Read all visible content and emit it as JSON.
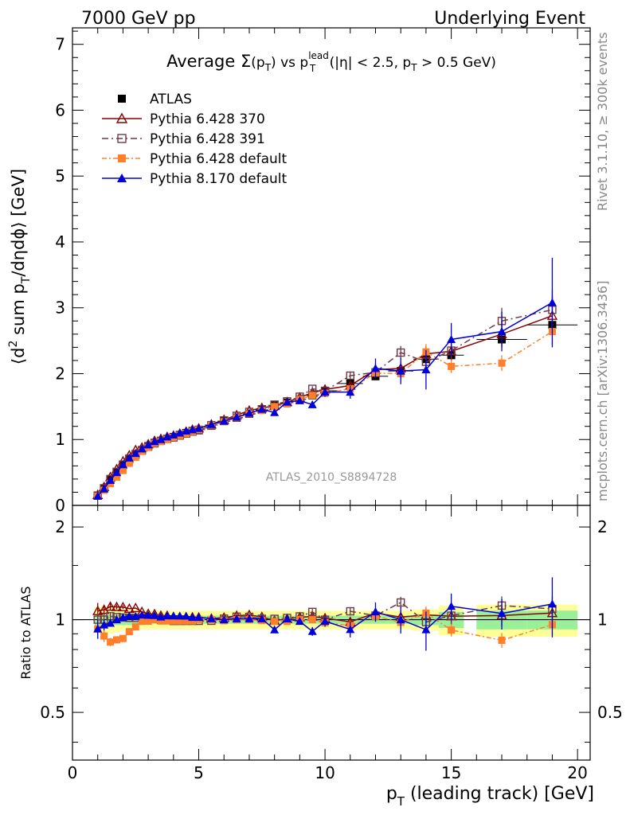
{
  "header": {
    "left": "7000 GeV pp",
    "right": "Underlying Event"
  },
  "side_labels": {
    "rivet": "Rivet 3.1.10, ≥ 300k events",
    "mcplots": "mcplots.cern.ch [arXiv:1306.3436]"
  },
  "chart_data": {
    "type": "scatter",
    "title": {
      "prefix": "Average ",
      "sigma": "Σ",
      "sigma_arg": "(p",
      "sigma_arg_sub": "T",
      "sigma_arg_close": ")",
      "vs": " vs p",
      "vs_sup": "lead",
      "vs_sub": "T",
      "cut_a": " (|η| < 2.5, p",
      "cut_sub": "T",
      "cut_b": " > 0.5 GeV)"
    },
    "ylabel": {
      "a": "⟨d",
      "sup": "2",
      "b": " sum p",
      "sub": "T",
      "c": "/dηdϕ⟩ [GeV]"
    },
    "ratio_ylabel": "Ratio to ATLAS",
    "xlabel": {
      "a": "p",
      "sub": "T",
      "b": " (leading track) [GeV]"
    },
    "watermark": "ATLAS_2010_S8894728",
    "xlim": [
      0,
      20.5
    ],
    "ylim": [
      0,
      7.25
    ],
    "ratio_ylim": [
      0.35,
      2.35
    ],
    "x_ticks": [
      "0",
      "5",
      "10",
      "15",
      "20"
    ],
    "y_ticks": [
      "0",
      "1",
      "2",
      "3",
      "4",
      "5",
      "6",
      "7"
    ],
    "ratio_ticks": [
      "0.5",
      "1",
      "2"
    ],
    "legend_position": "top-left",
    "x": [
      1.0,
      1.25,
      1.5,
      1.75,
      2.0,
      2.25,
      2.5,
      2.75,
      3.0,
      3.25,
      3.5,
      3.75,
      4.0,
      4.25,
      4.5,
      4.75,
      5.0,
      5.5,
      6.0,
      6.5,
      7.0,
      7.5,
      8.0,
      8.5,
      9.0,
      9.5,
      10.0,
      11.0,
      12.0,
      13.0,
      14.0,
      15.0,
      17.0,
      19.0
    ],
    "x_err": [
      0.125,
      0.125,
      0.125,
      0.125,
      0.125,
      0.125,
      0.125,
      0.125,
      0.125,
      0.125,
      0.125,
      0.125,
      0.125,
      0.125,
      0.125,
      0.125,
      0.25,
      0.25,
      0.25,
      0.25,
      0.25,
      0.25,
      0.25,
      0.25,
      0.25,
      0.25,
      0.5,
      0.5,
      0.5,
      0.5,
      0.5,
      0.5,
      1.0,
      1.0
    ],
    "data": {
      "name": "ATLAS",
      "values": [
        0.15,
        0.26,
        0.39,
        0.5,
        0.61,
        0.7,
        0.77,
        0.83,
        0.89,
        0.94,
        0.98,
        1.01,
        1.04,
        1.07,
        1.1,
        1.13,
        1.15,
        1.22,
        1.28,
        1.33,
        1.39,
        1.45,
        1.52,
        1.56,
        1.61,
        1.67,
        1.74,
        1.85,
        1.96,
        2.04,
        2.22,
        2.28,
        2.52,
        2.74
      ],
      "band_inner": [
        0.04,
        0.04,
        0.04,
        0.04,
        0.04,
        0.04,
        0.04,
        0.04,
        0.03,
        0.03,
        0.03,
        0.03,
        0.03,
        0.03,
        0.03,
        0.03,
        0.03,
        0.03,
        0.03,
        0.03,
        0.03,
        0.03,
        0.03,
        0.03,
        0.03,
        0.03,
        0.03,
        0.03,
        0.03,
        0.03,
        0.04,
        0.06,
        0.07,
        0.07
      ],
      "band_outer": [
        0.1,
        0.1,
        0.1,
        0.09,
        0.08,
        0.08,
        0.08,
        0.07,
        0.07,
        0.07,
        0.07,
        0.07,
        0.07,
        0.07,
        0.07,
        0.07,
        0.07,
        0.07,
        0.07,
        0.07,
        0.07,
        0.07,
        0.07,
        0.07,
        0.07,
        0.07,
        0.07,
        0.07,
        0.07,
        0.07,
        0.08,
        0.11,
        0.12,
        0.12
      ]
    },
    "series": [
      {
        "name": "Pythia 6.428 370",
        "color": "#8b0000",
        "marker": "triangle-open",
        "dash": "",
        "values": [
          0.16,
          0.28,
          0.43,
          0.55,
          0.67,
          0.76,
          0.84,
          0.88,
          0.93,
          0.98,
          1.01,
          1.04,
          1.06,
          1.09,
          1.12,
          1.15,
          1.17,
          1.23,
          1.3,
          1.37,
          1.44,
          1.48,
          1.51,
          1.57,
          1.64,
          1.71,
          1.76,
          1.82,
          2.06,
          2.08,
          2.3,
          2.34,
          2.6,
          2.88
        ],
        "err": [
          0.01,
          0.01,
          0.01,
          0.01,
          0.01,
          0.01,
          0.01,
          0.01,
          0.01,
          0.01,
          0.01,
          0.01,
          0.01,
          0.01,
          0.01,
          0.01,
          0.01,
          0.01,
          0.02,
          0.02,
          0.02,
          0.02,
          0.03,
          0.03,
          0.03,
          0.04,
          0.05,
          0.06,
          0.08,
          0.1,
          0.12,
          0.15,
          0.2,
          0.3
        ]
      },
      {
        "name": "Pythia 6.428 391",
        "color": "#6e3a4a",
        "marker": "square-open",
        "dash": "8,4,2,4",
        "values": [
          0.15,
          0.26,
          0.4,
          0.51,
          0.62,
          0.71,
          0.78,
          0.84,
          0.9,
          0.95,
          0.98,
          1.01,
          1.03,
          1.06,
          1.09,
          1.12,
          1.14,
          1.21,
          1.29,
          1.36,
          1.42,
          1.46,
          1.53,
          1.58,
          1.65,
          1.77,
          1.74,
          1.97,
          2.02,
          2.32,
          2.18,
          2.35,
          2.8,
          2.97
        ],
        "err": [
          0.01,
          0.01,
          0.01,
          0.01,
          0.01,
          0.01,
          0.01,
          0.01,
          0.01,
          0.01,
          0.01,
          0.01,
          0.01,
          0.01,
          0.01,
          0.01,
          0.01,
          0.01,
          0.02,
          0.02,
          0.02,
          0.02,
          0.03,
          0.03,
          0.03,
          0.04,
          0.05,
          0.06,
          0.08,
          0.1,
          0.12,
          0.15,
          0.2,
          0.3
        ]
      },
      {
        "name": "Pythia 6.428 default",
        "color": "#ff7f2a",
        "marker": "square-filled",
        "dash": "6,3,2,3",
        "values": [
          0.14,
          0.23,
          0.33,
          0.43,
          0.53,
          0.64,
          0.73,
          0.82,
          0.88,
          0.94,
          0.97,
          1.0,
          1.03,
          1.06,
          1.09,
          1.12,
          1.15,
          1.22,
          1.27,
          1.33,
          1.39,
          1.44,
          1.5,
          1.54,
          1.61,
          1.67,
          1.7,
          1.77,
          2.01,
          2.0,
          2.33,
          2.11,
          2.16,
          2.64
        ],
        "err": [
          0.01,
          0.01,
          0.01,
          0.01,
          0.01,
          0.01,
          0.01,
          0.01,
          0.01,
          0.01,
          0.01,
          0.01,
          0.01,
          0.01,
          0.01,
          0.01,
          0.01,
          0.01,
          0.02,
          0.02,
          0.02,
          0.02,
          0.03,
          0.03,
          0.03,
          0.04,
          0.05,
          0.06,
          0.08,
          0.1,
          0.12,
          0.1,
          0.12,
          0.2
        ]
      },
      {
        "name": "Pythia 8.170 default",
        "color": "#0000dd",
        "marker": "triangle-filled",
        "dash": "",
        "values": [
          0.14,
          0.25,
          0.38,
          0.5,
          0.62,
          0.72,
          0.79,
          0.86,
          0.92,
          0.97,
          1.0,
          1.04,
          1.07,
          1.1,
          1.13,
          1.15,
          1.17,
          1.23,
          1.28,
          1.34,
          1.4,
          1.46,
          1.41,
          1.57,
          1.59,
          1.53,
          1.72,
          1.72,
          2.08,
          2.04,
          2.06,
          2.52,
          2.64,
          3.08
        ],
        "err": [
          0.01,
          0.01,
          0.01,
          0.01,
          0.01,
          0.01,
          0.01,
          0.01,
          0.01,
          0.01,
          0.01,
          0.01,
          0.01,
          0.01,
          0.01,
          0.01,
          0.01,
          0.01,
          0.02,
          0.02,
          0.02,
          0.02,
          0.03,
          0.04,
          0.04,
          0.05,
          0.07,
          0.1,
          0.15,
          0.2,
          0.3,
          0.25,
          0.3,
          0.68
        ]
      }
    ]
  }
}
